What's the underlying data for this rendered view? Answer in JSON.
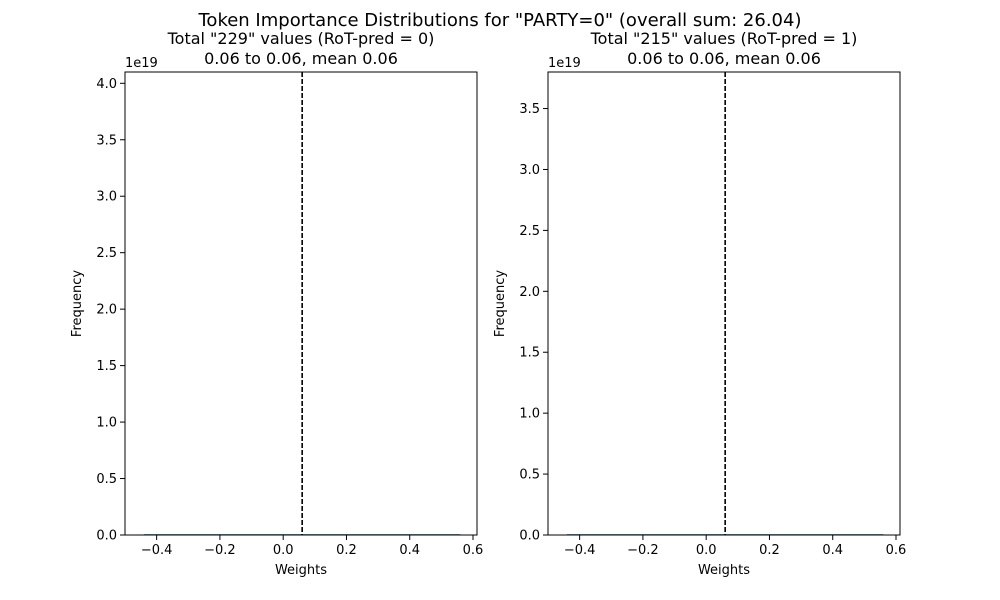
{
  "figure": {
    "suptitle": "Token Importance Distributions for \"PARTY=0\" (overall  sum: 26.04)"
  },
  "chart_data": [
    {
      "type": "bar",
      "title_line1": "Total \"229\" values (RoT-pred = 0)",
      "title_line2": "0.06 to 0.06, mean 0.06",
      "xlabel": "Weights",
      "ylabel": "Frequency",
      "y_offset_label": "1e19",
      "xlim": [
        -0.5,
        0.6126
      ],
      "ylim": [
        0,
        4.1
      ],
      "xticks": [
        -0.4,
        -0.2,
        0.0,
        0.2,
        0.4,
        0.6
      ],
      "xtick_labels": [
        "−0.4",
        "−0.2",
        "0.0",
        "0.2",
        "0.4",
        "0.6"
      ],
      "yticks": [
        0,
        0.5,
        1.0,
        1.5,
        2.0,
        2.5,
        3.0,
        3.5,
        4.0
      ],
      "ytick_labels": [
        "0.0",
        "0.5",
        "1.0",
        "1.5",
        "2.0",
        "2.5",
        "3.0",
        "3.5",
        "4.0"
      ],
      "mean_line_x": 0.06,
      "histogram": {
        "x_range": [
          -0.44,
          0.56
        ],
        "max_frequency": 0.0
      },
      "grid": false,
      "legend": "none"
    },
    {
      "type": "bar",
      "title_line1": "Total \"215\" values (RoT-pred = 1)",
      "title_line2": "0.06 to 0.06, mean 0.06",
      "xlabel": "Weights",
      "ylabel": "Frequency",
      "y_offset_label": "1e19",
      "xlim": [
        -0.5,
        0.6126
      ],
      "ylim": [
        0,
        3.8
      ],
      "xticks": [
        -0.4,
        -0.2,
        0.0,
        0.2,
        0.4,
        0.6
      ],
      "xtick_labels": [
        "−0.4",
        "−0.2",
        "0.0",
        "0.2",
        "0.4",
        "0.6"
      ],
      "yticks": [
        0,
        0.5,
        1.0,
        1.5,
        2.0,
        2.5,
        3.0,
        3.5
      ],
      "ytick_labels": [
        "0.0",
        "0.5",
        "1.0",
        "1.5",
        "2.0",
        "2.5",
        "3.0",
        "3.5"
      ],
      "mean_line_x": 0.06,
      "histogram": {
        "x_range": [
          -0.44,
          0.56
        ],
        "max_frequency": 0.0
      },
      "grid": false,
      "legend": "none"
    }
  ]
}
